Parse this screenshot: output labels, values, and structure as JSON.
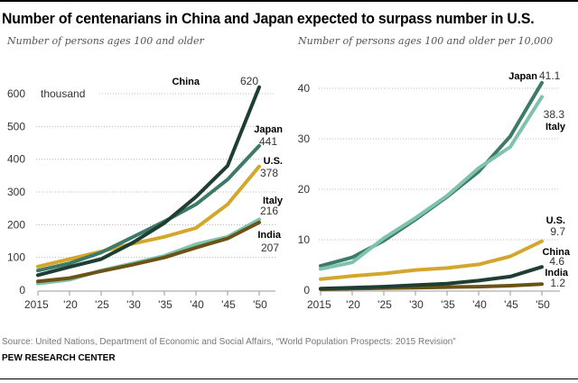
{
  "title": "Number of centenarians in China and Japan expected to surpass number in U.S.",
  "source": "Source: United Nations, Department of Economic and Social Affairs, “World Population Prospects: 2015 Revision”",
  "credit": "PEW RESEARCH CENTER",
  "chart_data": [
    {
      "type": "line",
      "subtitle": "Number of persons ages 100 and older",
      "unit_label": "thousand",
      "x": [
        2015,
        2020,
        2025,
        2030,
        2035,
        2040,
        2045,
        2050
      ],
      "x_tick_labels": [
        "2015",
        "'20",
        "'25",
        "'30",
        "'35",
        "'40",
        "'45",
        "'50"
      ],
      "y_ticks": [
        0,
        100,
        200,
        300,
        400,
        500,
        600
      ],
      "ylim": [
        0,
        620
      ],
      "grid": true,
      "series": [
        {
          "name": "U.S.",
          "color": "#D4A72C",
          "values": [
            72,
            95,
            118,
            142,
            163,
            190,
            262,
            378
          ],
          "end_label": "378"
        },
        {
          "name": "Italy",
          "color": "#7FC2AE",
          "values": [
            20,
            32,
            60,
            82,
            105,
            140,
            163,
            216
          ],
          "end_label": "216"
        },
        {
          "name": "India",
          "color": "#6B5316",
          "values": [
            27,
            37,
            58,
            78,
            100,
            130,
            158,
            207
          ],
          "end_label": "207"
        },
        {
          "name": "Japan",
          "color": "#3D7A68",
          "values": [
            60,
            82,
            115,
            162,
            210,
            262,
            338,
            441
          ],
          "end_label": "441"
        },
        {
          "name": "China",
          "color": "#1E3D33",
          "values": [
            46,
            71,
            95,
            145,
            205,
            285,
            380,
            620
          ],
          "end_label": "620"
        }
      ]
    },
    {
      "type": "line",
      "subtitle": "Number of persons ages 100 and older per 10,000",
      "x": [
        2015,
        2020,
        2025,
        2030,
        2035,
        2040,
        2045,
        2050
      ],
      "x_tick_labels": [
        "2015",
        "'20",
        "'25",
        "'30",
        "'35",
        "'40",
        "'45",
        "'50"
      ],
      "y_ticks": [
        0,
        10,
        20,
        30,
        40
      ],
      "ylim": [
        0,
        42
      ],
      "grid": true,
      "series": [
        {
          "name": "U.S.",
          "color": "#D4A72C",
          "values": [
            2.2,
            2.8,
            3.3,
            4.0,
            4.4,
            5.1,
            6.7,
            9.7
          ],
          "end_label": "9.7"
        },
        {
          "name": "India",
          "color": "#6B5316",
          "values": [
            0.2,
            0.3,
            0.4,
            0.5,
            0.6,
            0.7,
            0.9,
            1.2
          ],
          "end_label": "1.2"
        },
        {
          "name": "China",
          "color": "#1E3D33",
          "values": [
            0.3,
            0.5,
            0.7,
            1.0,
            1.3,
            1.9,
            2.7,
            4.6
          ],
          "end_label": "4.6"
        },
        {
          "name": "Japan",
          "color": "#3D7A68",
          "values": [
            4.8,
            6.5,
            9.8,
            14.0,
            18.5,
            23.5,
            30.5,
            41.1
          ],
          "end_label": "41.1"
        },
        {
          "name": "Italy",
          "color": "#7FC2AE",
          "values": [
            4.2,
            5.5,
            10.3,
            14.3,
            18.7,
            24.2,
            28.4,
            38.3
          ],
          "end_label": "38.3"
        }
      ]
    }
  ]
}
